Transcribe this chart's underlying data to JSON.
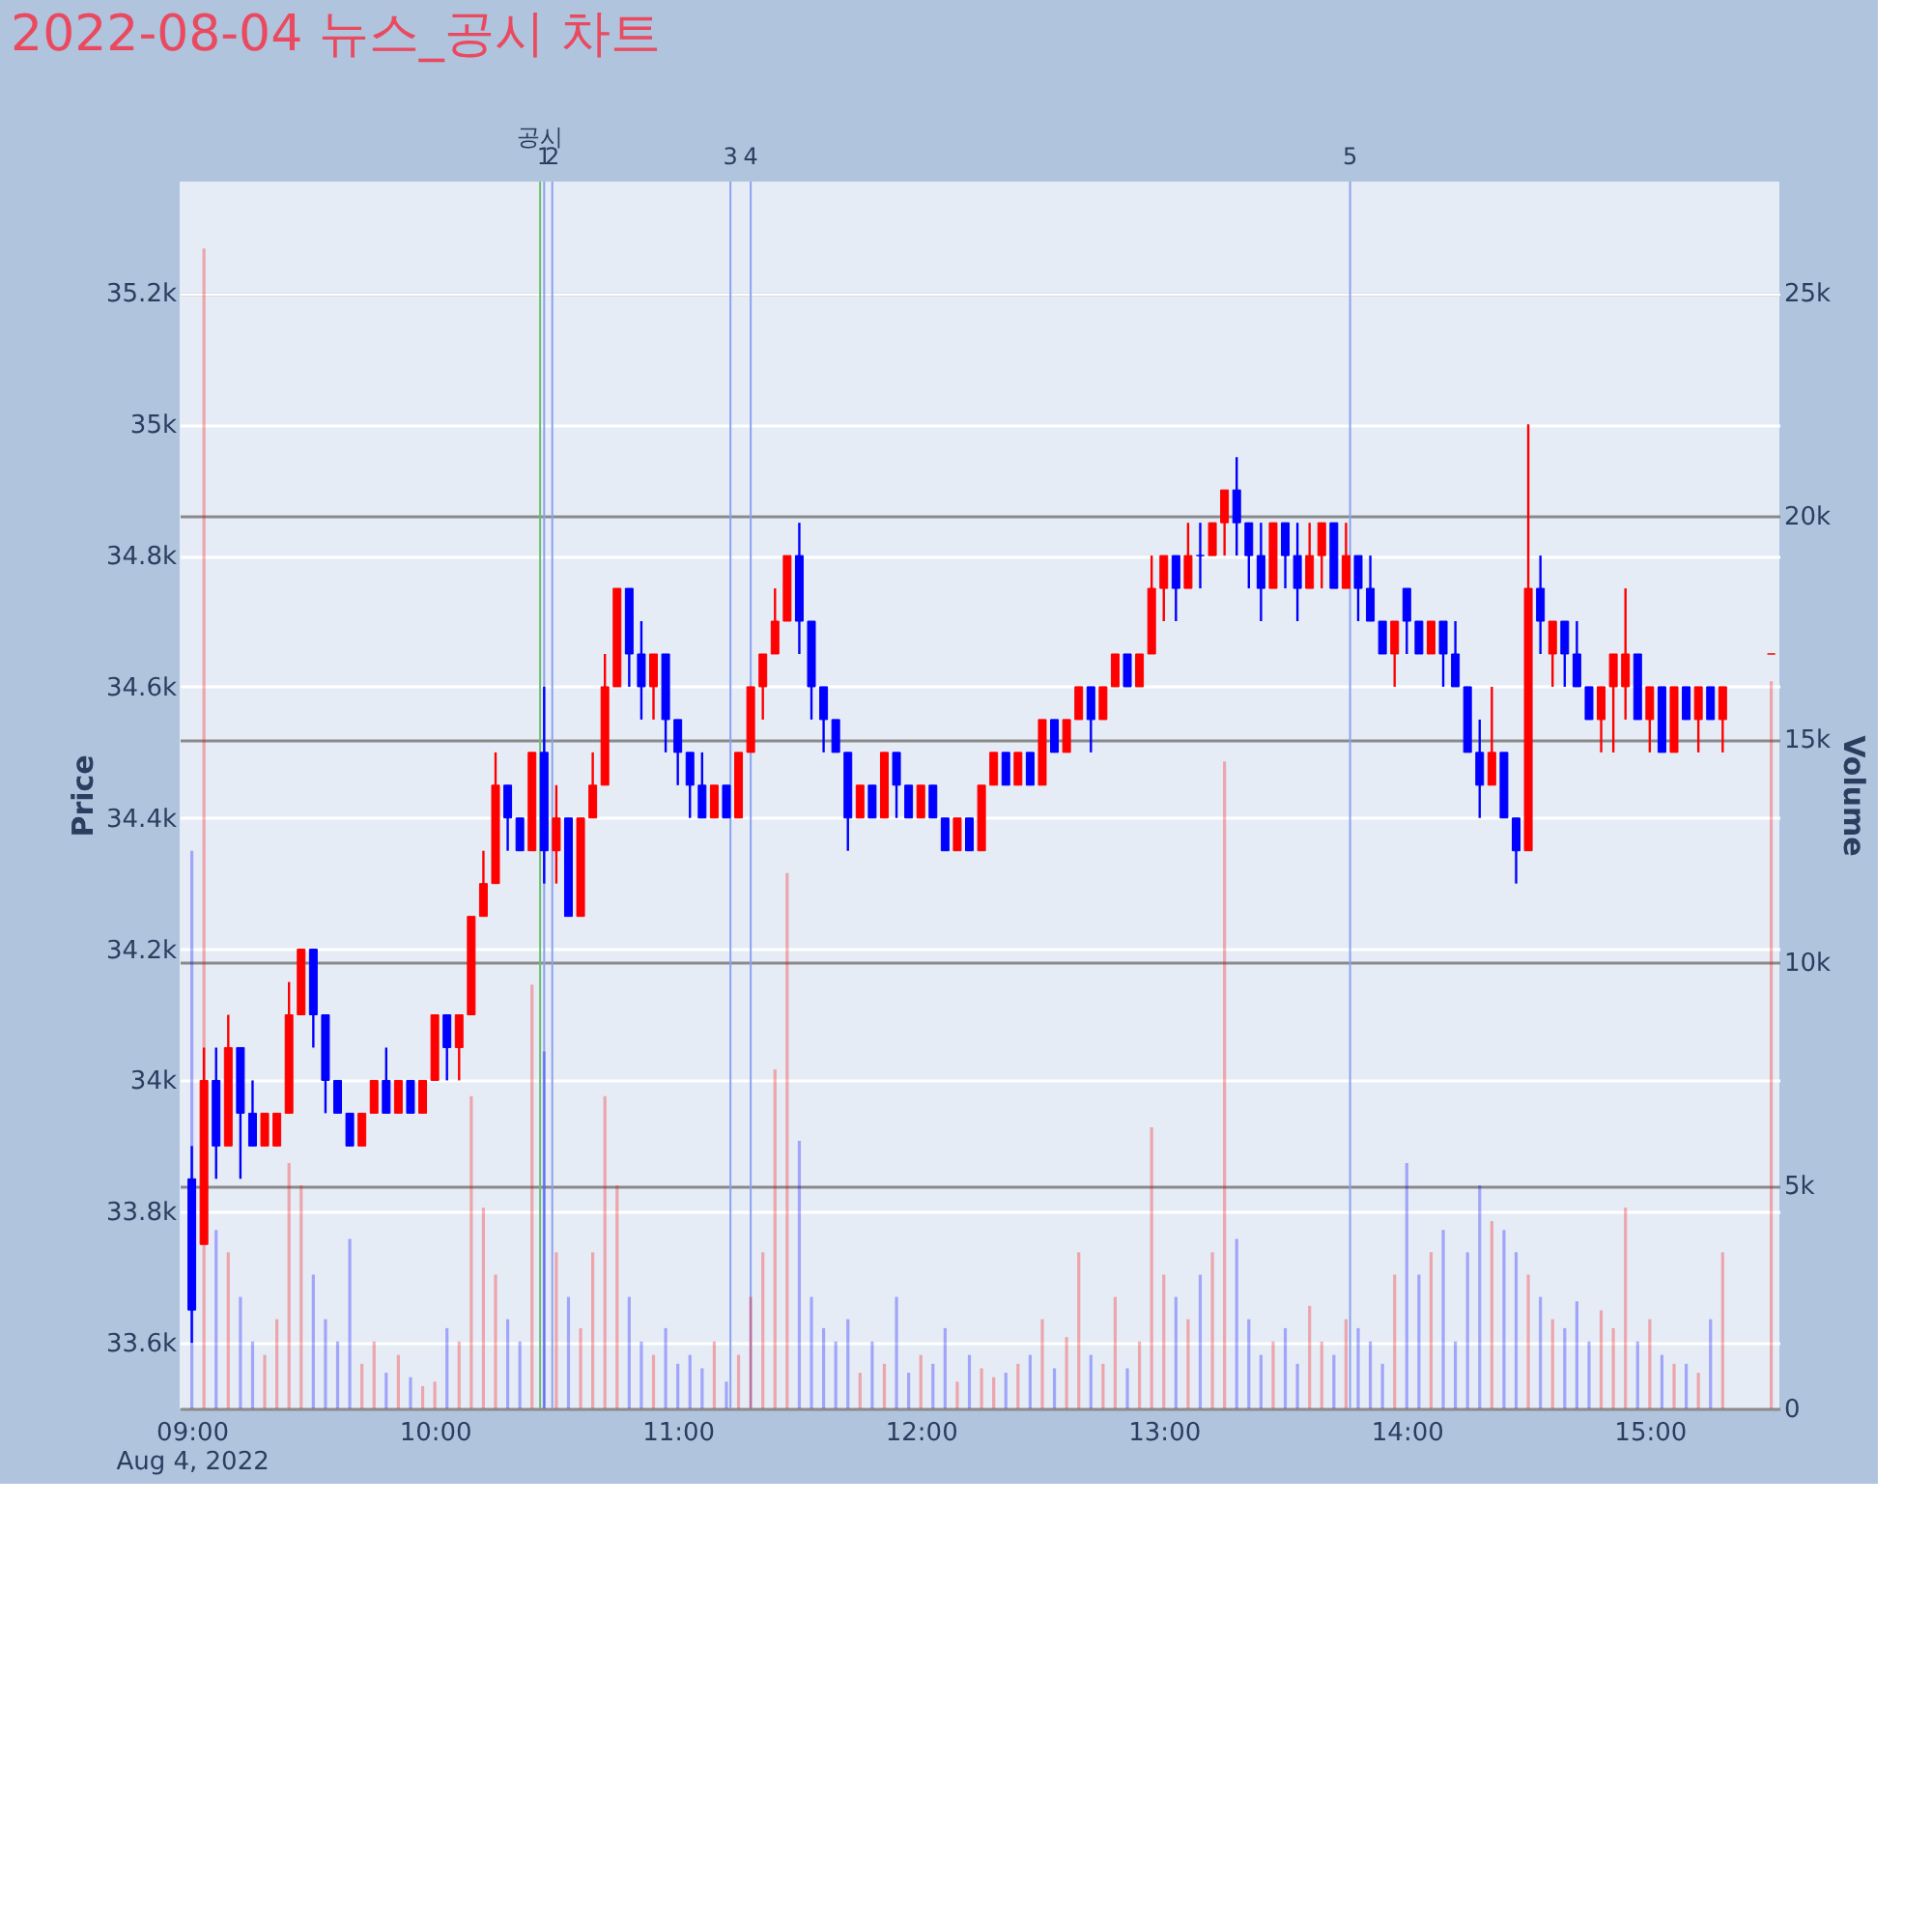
{
  "chart_data": {
    "type": "candlestick",
    "title": "2022-08-04 뉴스_공시 차트",
    "ylabel": "Price",
    "y2label": "Volume",
    "xlim": [
      "2022-08-04T08:57",
      "2022-08-04T15:32"
    ],
    "xticks": [
      {
        "value": "2022-08-04T09:00",
        "label": "09:00\nAug 4, 2022"
      },
      {
        "value": "2022-08-04T10:00",
        "label": "10:00"
      },
      {
        "value": "2022-08-04T11:00",
        "label": "11:00"
      },
      {
        "value": "2022-08-04T12:00",
        "label": "12:00"
      },
      {
        "value": "2022-08-04T13:00",
        "label": "13:00"
      },
      {
        "value": "2022-08-04T14:00",
        "label": "14:00"
      },
      {
        "value": "2022-08-04T15:00",
        "label": "15:00"
      }
    ],
    "ylim": [
      33500,
      35370
    ],
    "yticks": [
      {
        "value": 33600,
        "label": "33.6k"
      },
      {
        "value": 33800,
        "label": "33.8k"
      },
      {
        "value": 34000,
        "label": "34k"
      },
      {
        "value": 34200,
        "label": "34.2k"
      },
      {
        "value": 34400,
        "label": "34.4k"
      },
      {
        "value": 34600,
        "label": "34.6k"
      },
      {
        "value": 34800,
        "label": "34.8k"
      },
      {
        "value": 35000,
        "label": "35k"
      },
      {
        "value": 35200,
        "label": "35.2k"
      }
    ],
    "y2lim": [
      0,
      27500
    ],
    "y2ticks": [
      0,
      {
        "value": 5000,
        "label": "5k"
      },
      {
        "value": 10000,
        "label": "10k"
      },
      {
        "value": 15000,
        "label": "15k"
      },
      {
        "value": 20000,
        "label": "20k"
      },
      {
        "value": 25000,
        "label": "25k"
      }
    ],
    "grid": "y",
    "x": [
      "2022-08-04T09:00",
      "2022-08-04T09:03",
      "2022-08-04T09:06",
      "2022-08-04T09:09",
      "2022-08-04T09:12",
      "2022-08-04T09:15",
      "2022-08-04T09:18",
      "2022-08-04T09:21",
      "2022-08-04T09:24",
      "2022-08-04T09:27",
      "2022-08-04T09:30",
      "2022-08-04T09:33",
      "2022-08-04T09:36",
      "2022-08-04T09:39",
      "2022-08-04T09:42",
      "2022-08-04T09:45",
      "2022-08-04T09:48",
      "2022-08-04T09:51",
      "2022-08-04T09:54",
      "2022-08-04T09:57",
      "2022-08-04T10:00",
      "2022-08-04T10:03",
      "2022-08-04T10:06",
      "2022-08-04T10:09",
      "2022-08-04T10:12",
      "2022-08-04T10:15",
      "2022-08-04T10:18",
      "2022-08-04T10:21",
      "2022-08-04T10:24",
      "2022-08-04T10:27",
      "2022-08-04T10:30",
      "2022-08-04T10:33",
      "2022-08-04T10:36",
      "2022-08-04T10:39",
      "2022-08-04T10:42",
      "2022-08-04T10:45",
      "2022-08-04T10:48",
      "2022-08-04T10:51",
      "2022-08-04T10:54",
      "2022-08-04T10:57",
      "2022-08-04T11:00",
      "2022-08-04T11:03",
      "2022-08-04T11:06",
      "2022-08-04T11:09",
      "2022-08-04T11:12",
      "2022-08-04T11:15",
      "2022-08-04T11:18",
      "2022-08-04T11:21",
      "2022-08-04T11:24",
      "2022-08-04T11:27",
      "2022-08-04T11:30",
      "2022-08-04T11:33",
      "2022-08-04T11:36",
      "2022-08-04T11:39",
      "2022-08-04T11:42",
      "2022-08-04T11:45",
      "2022-08-04T11:48",
      "2022-08-04T11:51",
      "2022-08-04T11:54",
      "2022-08-04T11:57",
      "2022-08-04T12:00",
      "2022-08-04T12:03",
      "2022-08-04T12:06",
      "2022-08-04T12:09",
      "2022-08-04T12:12",
      "2022-08-04T12:15",
      "2022-08-04T12:18",
      "2022-08-04T12:21",
      "2022-08-04T12:24",
      "2022-08-04T12:27",
      "2022-08-04T12:30",
      "2022-08-04T12:33",
      "2022-08-04T12:36",
      "2022-08-04T12:39",
      "2022-08-04T12:42",
      "2022-08-04T12:45",
      "2022-08-04T12:48",
      "2022-08-04T12:51",
      "2022-08-04T12:54",
      "2022-08-04T12:57",
      "2022-08-04T13:00",
      "2022-08-04T13:03",
      "2022-08-04T13:06",
      "2022-08-04T13:09",
      "2022-08-04T13:12",
      "2022-08-04T13:15",
      "2022-08-04T13:18",
      "2022-08-04T13:21",
      "2022-08-04T13:24",
      "2022-08-04T13:27",
      "2022-08-04T13:30",
      "2022-08-04T13:33",
      "2022-08-04T13:36",
      "2022-08-04T13:39",
      "2022-08-04T13:42",
      "2022-08-04T13:45",
      "2022-08-04T13:48",
      "2022-08-04T13:51",
      "2022-08-04T13:54",
      "2022-08-04T13:57",
      "2022-08-04T14:00",
      "2022-08-04T14:03",
      "2022-08-04T14:06",
      "2022-08-04T14:09",
      "2022-08-04T14:12",
      "2022-08-04T14:15",
      "2022-08-04T14:18",
      "2022-08-04T14:21",
      "2022-08-04T14:24",
      "2022-08-04T14:27",
      "2022-08-04T14:30",
      "2022-08-04T14:33",
      "2022-08-04T14:36",
      "2022-08-04T14:39",
      "2022-08-04T14:42",
      "2022-08-04T14:45",
      "2022-08-04T14:48",
      "2022-08-04T14:51",
      "2022-08-04T14:54",
      "2022-08-04T14:57",
      "2022-08-04T15:00",
      "2022-08-04T15:03",
      "2022-08-04T15:06",
      "2022-08-04T15:09",
      "2022-08-04T15:12",
      "2022-08-04T15:15",
      "2022-08-04T15:18",
      "2022-08-04T15:30"
    ],
    "ohlc": [
      [
        33850,
        33900,
        33600,
        33650
      ],
      [
        33750,
        34050,
        33750,
        34000
      ],
      [
        34000,
        34050,
        33850,
        33900
      ],
      [
        33900,
        34100,
        33900,
        34050
      ],
      [
        34050,
        34050,
        33850,
        33950
      ],
      [
        33950,
        34000,
        33900,
        33900
      ],
      [
        33900,
        33950,
        33900,
        33950
      ],
      [
        33900,
        33950,
        33900,
        33950
      ],
      [
        33950,
        34150,
        33950,
        34100
      ],
      [
        34100,
        34200,
        34100,
        34200
      ],
      [
        34200,
        34200,
        34050,
        34100
      ],
      [
        34100,
        34100,
        33950,
        34000
      ],
      [
        34000,
        34000,
        33950,
        33950
      ],
      [
        33950,
        33950,
        33900,
        33900
      ],
      [
        33900,
        33950,
        33900,
        33950
      ],
      [
        33950,
        34000,
        33950,
        34000
      ],
      [
        34000,
        34050,
        33950,
        33950
      ],
      [
        33950,
        34000,
        33950,
        34000
      ],
      [
        34000,
        34000,
        33950,
        33950
      ],
      [
        33950,
        34000,
        33950,
        34000
      ],
      [
        34000,
        34100,
        34000,
        34100
      ],
      [
        34100,
        34100,
        34000,
        34050
      ],
      [
        34050,
        34100,
        34000,
        34100
      ],
      [
        34100,
        34250,
        34100,
        34250
      ],
      [
        34250,
        34350,
        34250,
        34300
      ],
      [
        34300,
        34500,
        34300,
        34450
      ],
      [
        34450,
        34450,
        34350,
        34400
      ],
      [
        34400,
        34400,
        34350,
        34350
      ],
      [
        34350,
        34500,
        34350,
        34500
      ],
      [
        34500,
        34600,
        34300,
        34350
      ],
      [
        34350,
        34450,
        34300,
        34400
      ],
      [
        34400,
        34400,
        34250,
        34250
      ],
      [
        34250,
        34400,
        34250,
        34400
      ],
      [
        34400,
        34500,
        34400,
        34450
      ],
      [
        34450,
        34650,
        34450,
        34600
      ],
      [
        34600,
        34750,
        34600,
        34750
      ],
      [
        34750,
        34750,
        34600,
        34650
      ],
      [
        34650,
        34700,
        34550,
        34600
      ],
      [
        34600,
        34650,
        34550,
        34650
      ],
      [
        34650,
        34650,
        34500,
        34550
      ],
      [
        34550,
        34550,
        34450,
        34500
      ],
      [
        34500,
        34500,
        34400,
        34450
      ],
      [
        34450,
        34500,
        34400,
        34400
      ],
      [
        34400,
        34450,
        34400,
        34450
      ],
      [
        34450,
        34450,
        34400,
        34400
      ],
      [
        34400,
        34500,
        34400,
        34500
      ],
      [
        34500,
        34600,
        34500,
        34600
      ],
      [
        34600,
        34650,
        34550,
        34650
      ],
      [
        34650,
        34750,
        34650,
        34700
      ],
      [
        34700,
        34800,
        34700,
        34800
      ],
      [
        34800,
        34850,
        34650,
        34700
      ],
      [
        34700,
        34700,
        34550,
        34600
      ],
      [
        34600,
        34600,
        34500,
        34550
      ],
      [
        34550,
        34550,
        34500,
        34500
      ],
      [
        34500,
        34500,
        34350,
        34400
      ],
      [
        34400,
        34450,
        34400,
        34450
      ],
      [
        34450,
        34450,
        34400,
        34400
      ],
      [
        34400,
        34500,
        34400,
        34500
      ],
      [
        34500,
        34500,
        34400,
        34450
      ],
      [
        34450,
        34450,
        34400,
        34400
      ],
      [
        34400,
        34450,
        34400,
        34450
      ],
      [
        34450,
        34450,
        34400,
        34400
      ],
      [
        34400,
        34400,
        34350,
        34350
      ],
      [
        34350,
        34400,
        34350,
        34400
      ],
      [
        34400,
        34400,
        34350,
        34350
      ],
      [
        34350,
        34450,
        34350,
        34450
      ],
      [
        34450,
        34500,
        34450,
        34500
      ],
      [
        34500,
        34500,
        34450,
        34450
      ],
      [
        34450,
        34500,
        34450,
        34500
      ],
      [
        34500,
        34500,
        34450,
        34450
      ],
      [
        34450,
        34550,
        34450,
        34550
      ],
      [
        34550,
        34550,
        34500,
        34500
      ],
      [
        34500,
        34550,
        34500,
        34550
      ],
      [
        34550,
        34600,
        34550,
        34600
      ],
      [
        34600,
        34600,
        34500,
        34550
      ],
      [
        34550,
        34600,
        34550,
        34600
      ],
      [
        34600,
        34650,
        34600,
        34650
      ],
      [
        34650,
        34650,
        34600,
        34600
      ],
      [
        34600,
        34650,
        34600,
        34650
      ],
      [
        34650,
        34800,
        34650,
        34750
      ],
      [
        34750,
        34800,
        34700,
        34800
      ],
      [
        34800,
        34800,
        34700,
        34750
      ],
      [
        34750,
        34850,
        34750,
        34800
      ],
      [
        34800,
        34850,
        34750,
        34800
      ],
      [
        34800,
        34850,
        34800,
        34850
      ],
      [
        34850,
        34900,
        34800,
        34900
      ],
      [
        34900,
        34950,
        34800,
        34850
      ],
      [
        34850,
        34850,
        34750,
        34800
      ],
      [
        34800,
        34850,
        34700,
        34750
      ],
      [
        34750,
        34850,
        34750,
        34850
      ],
      [
        34850,
        34850,
        34750,
        34800
      ],
      [
        34800,
        34850,
        34700,
        34750
      ],
      [
        34750,
        34850,
        34750,
        34800
      ],
      [
        34800,
        34850,
        34750,
        34850
      ],
      [
        34850,
        34850,
        34750,
        34750
      ],
      [
        34750,
        34850,
        34750,
        34800
      ],
      [
        34800,
        34800,
        34700,
        34750
      ],
      [
        34750,
        34800,
        34700,
        34700
      ],
      [
        34700,
        34700,
        34650,
        34650
      ],
      [
        34650,
        34700,
        34600,
        34700
      ],
      [
        34750,
        34750,
        34650,
        34700
      ],
      [
        34700,
        34700,
        34650,
        34650
      ],
      [
        34650,
        34700,
        34650,
        34700
      ],
      [
        34700,
        34700,
        34600,
        34650
      ],
      [
        34650,
        34700,
        34600,
        34600
      ],
      [
        34600,
        34600,
        34500,
        34500
      ],
      [
        34500,
        34550,
        34400,
        34450
      ],
      [
        34450,
        34600,
        34450,
        34500
      ],
      [
        34500,
        34500,
        34400,
        34400
      ],
      [
        34400,
        34400,
        34300,
        34350
      ],
      [
        34350,
        35000,
        34350,
        34750
      ],
      [
        34750,
        34800,
        34650,
        34700
      ],
      [
        34650,
        34700,
        34600,
        34700
      ],
      [
        34700,
        34700,
        34600,
        34650
      ],
      [
        34650,
        34700,
        34600,
        34600
      ],
      [
        34600,
        34600,
        34550,
        34550
      ],
      [
        34550,
        34600,
        34500,
        34600
      ],
      [
        34600,
        34650,
        34500,
        34650
      ],
      [
        34600,
        34750,
        34550,
        34650
      ],
      [
        34650,
        34650,
        34550,
        34550
      ],
      [
        34550,
        34600,
        34500,
        34600
      ],
      [
        34600,
        34600,
        34500,
        34500
      ],
      [
        34500,
        34600,
        34500,
        34600
      ],
      [
        34600,
        34600,
        34550,
        34550
      ],
      [
        34550,
        34600,
        34500,
        34600
      ],
      [
        34600,
        34600,
        34550,
        34550
      ],
      [
        34550,
        34600,
        34500,
        34600
      ],
      [
        34650,
        34650,
        34650,
        34650
      ]
    ],
    "colors": [
      "#0000ff",
      "#ff0000",
      "#0000ff",
      "#ff0000",
      "#0000ff",
      "#0000ff",
      "#ff0000",
      "#ff0000",
      "#ff0000",
      "#ff0000",
      "#0000ff",
      "#0000ff",
      "#0000ff",
      "#0000ff",
      "#ff0000",
      "#ff0000",
      "#0000ff",
      "#ff0000",
      "#0000ff",
      "#ff0000",
      "#ff0000",
      "#0000ff",
      "#ff0000",
      "#ff0000",
      "#ff0000",
      "#ff0000",
      "#0000ff",
      "#0000ff",
      "#ff0000",
      "#0000ff",
      "#ff0000",
      "#0000ff",
      "#ff0000",
      "#ff0000",
      "#ff0000",
      "#ff0000",
      "#0000ff",
      "#0000ff",
      "#ff0000",
      "#0000ff",
      "#0000ff",
      "#0000ff",
      "#0000ff",
      "#ff0000",
      "#0000ff",
      "#ff0000",
      "#ff0000",
      "#ff0000",
      "#ff0000",
      "#ff0000",
      "#0000ff",
      "#0000ff",
      "#0000ff",
      "#0000ff",
      "#0000ff",
      "#ff0000",
      "#0000ff",
      "#ff0000",
      "#0000ff",
      "#0000ff",
      "#ff0000",
      "#0000ff",
      "#0000ff",
      "#ff0000",
      "#0000ff",
      "#ff0000",
      "#ff0000",
      "#0000ff",
      "#ff0000",
      "#0000ff",
      "#ff0000",
      "#0000ff",
      "#ff0000",
      "#ff0000",
      "#0000ff",
      "#ff0000",
      "#ff0000",
      "#0000ff",
      "#ff0000",
      "#ff0000",
      "#ff0000",
      "#0000ff",
      "#ff0000",
      "#0000ff",
      "#ff0000",
      "#ff0000",
      "#0000ff",
      "#0000ff",
      "#0000ff",
      "#ff0000",
      "#0000ff",
      "#0000ff",
      "#ff0000",
      "#ff0000",
      "#0000ff",
      "#ff0000",
      "#0000ff",
      "#0000ff",
      "#0000ff",
      "#ff0000",
      "#0000ff",
      "#0000ff",
      "#ff0000",
      "#0000ff",
      "#0000ff",
      "#0000ff",
      "#0000ff",
      "#ff0000",
      "#0000ff",
      "#0000ff",
      "#ff0000",
      "#0000ff",
      "#ff0000",
      "#0000ff",
      "#0000ff",
      "#0000ff",
      "#ff0000",
      "#ff0000",
      "#ff0000",
      "#0000ff",
      "#ff0000",
      "#0000ff",
      "#ff0000",
      "#0000ff",
      "#ff0000",
      "#0000ff",
      "#ff0000",
      "#ff0000"
    ],
    "series": [
      {
        "type": "bar",
        "axis": "y2",
        "colors": [
          "#0000ff",
          "#ff0000",
          "#0000ff",
          "#ff0000",
          "#0000ff",
          "#0000ff",
          "#ff0000",
          "#ff0000",
          "#ff0000",
          "#ff0000",
          "#0000ff",
          "#0000ff",
          "#0000ff",
          "#0000ff",
          "#ff0000",
          "#ff0000",
          "#0000ff",
          "#ff0000",
          "#0000ff",
          "#ff0000",
          "#ff0000",
          "#0000ff",
          "#ff0000",
          "#ff0000",
          "#ff0000",
          "#ff0000",
          "#0000ff",
          "#0000ff",
          "#ff0000",
          "#0000ff",
          "#ff0000",
          "#0000ff",
          "#ff0000",
          "#ff0000",
          "#ff0000",
          "#ff0000",
          "#0000ff",
          "#0000ff",
          "#ff0000",
          "#0000ff",
          "#0000ff",
          "#0000ff",
          "#0000ff",
          "#ff0000",
          "#0000ff",
          "#ff0000",
          "#ff0000",
          "#ff0000",
          "#ff0000",
          "#ff0000",
          "#0000ff",
          "#0000ff",
          "#0000ff",
          "#0000ff",
          "#0000ff",
          "#ff0000",
          "#0000ff",
          "#ff0000",
          "#0000ff",
          "#0000ff",
          "#ff0000",
          "#0000ff",
          "#0000ff",
          "#ff0000",
          "#0000ff",
          "#ff0000",
          "#ff0000",
          "#0000ff",
          "#ff0000",
          "#0000ff",
          "#ff0000",
          "#0000ff",
          "#ff0000",
          "#ff0000",
          "#0000ff",
          "#ff0000",
          "#ff0000",
          "#0000ff",
          "#ff0000",
          "#ff0000",
          "#ff0000",
          "#0000ff",
          "#ff0000",
          "#0000ff",
          "#ff0000",
          "#ff0000",
          "#0000ff",
          "#0000ff",
          "#0000ff",
          "#ff0000",
          "#0000ff",
          "#0000ff",
          "#ff0000",
          "#ff0000",
          "#0000ff",
          "#ff0000",
          "#0000ff",
          "#0000ff",
          "#0000ff",
          "#ff0000",
          "#0000ff",
          "#0000ff",
          "#ff0000",
          "#0000ff",
          "#0000ff",
          "#0000ff",
          "#0000ff",
          "#ff0000",
          "#0000ff",
          "#0000ff",
          "#ff0000",
          "#0000ff",
          "#ff0000",
          "#0000ff",
          "#0000ff",
          "#0000ff",
          "#ff0000",
          "#ff0000",
          "#ff0000",
          "#0000ff",
          "#ff0000",
          "#0000ff",
          "#ff0000",
          "#0000ff",
          "#ff0000",
          "#0000ff",
          "#ff0000",
          "#ff0000"
        ],
        "values": [
          12500,
          26000,
          4000,
          3500,
          2500,
          1500,
          1200,
          2000,
          5500,
          5000,
          3000,
          2000,
          1500,
          3800,
          1000,
          1500,
          800,
          1200,
          700,
          500,
          600,
          1800,
          1500,
          7000,
          4500,
          3000,
          2000,
          1500,
          9500,
          8000,
          3500,
          2500,
          1800,
          3500,
          7000,
          5000,
          2500,
          1500,
          1200,
          1800,
          1000,
          1200,
          900,
          1500,
          600,
          1200,
          2500,
          3500,
          7600,
          12000,
          6000,
          2500,
          1800,
          1500,
          2000,
          800,
          1500,
          1000,
          2500,
          800,
          1200,
          1000,
          1800,
          600,
          1200,
          900,
          700,
          800,
          1000,
          1200,
          2000,
          900,
          1600,
          3500,
          1200,
          1000,
          2500,
          900,
          1500,
          6300,
          3000,
          2500,
          2000,
          3000,
          3500,
          14500,
          3800,
          2000,
          1200,
          1500,
          1800,
          1000,
          2300,
          1500,
          1200,
          2000,
          1800,
          1500,
          1000,
          3000,
          5500,
          3000,
          3500,
          4000,
          1500,
          3500,
          5000,
          4200,
          4000,
          3500,
          3000,
          2500,
          2000,
          1800,
          2400,
          1500,
          2200,
          1800,
          4500,
          1500,
          2000,
          1200,
          1000,
          1000,
          800,
          2000,
          3500,
          16300
        ]
      }
    ],
    "ref_lines": [
      {
        "axis": "x",
        "value": "2022-08-04T10:26",
        "label": "공시",
        "color": "#6fbf6f"
      },
      {
        "axis": "x",
        "value": "2022-08-04T10:27",
        "label": "1",
        "color": "#8ea2ee"
      },
      {
        "axis": "x",
        "value": "2022-08-04T10:29",
        "label": "2",
        "color": "#8ea2ee"
      },
      {
        "axis": "x",
        "value": "2022-08-04T11:13",
        "label": "3",
        "color": "#8ea2ee"
      },
      {
        "axis": "x",
        "value": "2022-08-04T11:18",
        "label": "4",
        "color": "#8ea2ee"
      },
      {
        "axis": "x",
        "value": "2022-08-04T13:46",
        "label": "5",
        "color": "#8ea2ee"
      }
    ]
  }
}
